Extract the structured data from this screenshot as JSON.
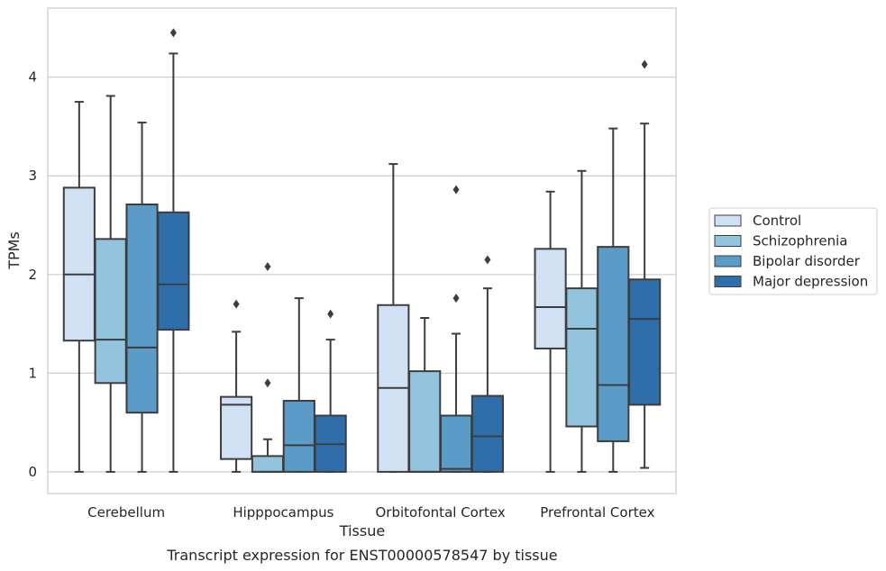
{
  "caption": "Transcript expression for ENST00000578547 by tissue",
  "chart_data": {
    "type": "box",
    "xlabel": "Tissue",
    "ylabel": "TPMs",
    "ylim": [
      -0.22,
      4.7
    ],
    "yticks": [
      0,
      1,
      2,
      3,
      4
    ],
    "grid": true,
    "legend_position": "right",
    "categories": [
      "Cerebellum",
      "Hipppocampus",
      "Orbitofontal Cortex",
      "Prefrontal Cortex"
    ],
    "series": [
      {
        "name": "Control",
        "color": "#cfe1f2",
        "boxes": [
          {
            "whislo": 0,
            "q1": 1.33,
            "med": 2.0,
            "q3": 2.88,
            "whishi": 3.75,
            "fliers": []
          },
          {
            "whislo": 0,
            "q1": 0.13,
            "med": 0.68,
            "q3": 0.76,
            "whishi": 1.42,
            "fliers": [
              1.7
            ]
          },
          {
            "whislo": 0,
            "q1": 0,
            "med": 0.85,
            "q3": 1.69,
            "whishi": 3.12,
            "fliers": []
          },
          {
            "whislo": 0,
            "q1": 1.25,
            "med": 1.67,
            "q3": 2.26,
            "whishi": 2.84,
            "fliers": []
          }
        ]
      },
      {
        "name": "Schizophrenia",
        "color": "#93c4de",
        "boxes": [
          {
            "whislo": 0,
            "q1": 0.9,
            "med": 1.34,
            "q3": 2.36,
            "whishi": 3.81,
            "fliers": []
          },
          {
            "whislo": 0,
            "q1": 0,
            "med": 0,
            "q3": 0.16,
            "whishi": 0.33,
            "fliers": [
              0.9,
              2.08
            ]
          },
          {
            "whislo": 0,
            "q1": 0,
            "med": 0,
            "q3": 1.02,
            "whishi": 1.56,
            "fliers": []
          },
          {
            "whislo": 0,
            "q1": 0.46,
            "med": 1.45,
            "q3": 1.86,
            "whishi": 3.05,
            "fliers": []
          }
        ]
      },
      {
        "name": "Bipolar disorder",
        "color": "#5a9bc7",
        "boxes": [
          {
            "whislo": 0,
            "q1": 0.6,
            "med": 1.26,
            "q3": 2.71,
            "whishi": 3.54,
            "fliers": []
          },
          {
            "whislo": 0,
            "q1": 0,
            "med": 0.27,
            "q3": 0.72,
            "whishi": 1.76,
            "fliers": []
          },
          {
            "whislo": 0,
            "q1": 0,
            "med": 0.03,
            "q3": 0.57,
            "whishi": 1.4,
            "fliers": [
              1.76,
              2.86
            ]
          },
          {
            "whislo": 0,
            "q1": 0.31,
            "med": 0.88,
            "q3": 2.28,
            "whishi": 3.48,
            "fliers": []
          }
        ]
      },
      {
        "name": "Major depression",
        "color": "#2e6fab",
        "boxes": [
          {
            "whislo": 0,
            "q1": 1.44,
            "med": 1.9,
            "q3": 2.63,
            "whishi": 4.24,
            "fliers": [
              4.45
            ]
          },
          {
            "whislo": 0,
            "q1": 0,
            "med": 0.28,
            "q3": 0.57,
            "whishi": 1.34,
            "fliers": [
              1.6
            ]
          },
          {
            "whislo": 0,
            "q1": 0,
            "med": 0.36,
            "q3": 0.77,
            "whishi": 1.86,
            "fliers": [
              2.15
            ]
          },
          {
            "whislo": 0.04,
            "q1": 0.68,
            "med": 1.55,
            "q3": 1.95,
            "whishi": 3.53,
            "fliers": [
              4.13
            ]
          }
        ]
      }
    ]
  }
}
